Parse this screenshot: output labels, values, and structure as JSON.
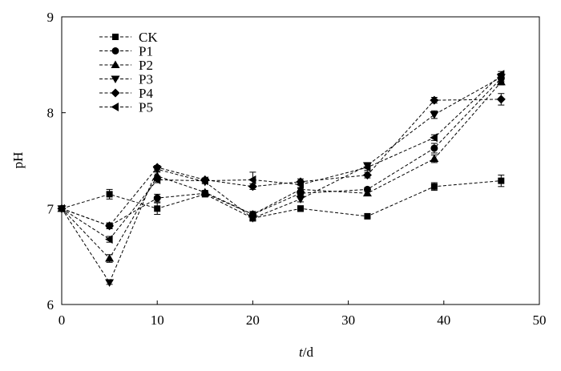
{
  "chart_data": {
    "type": "line",
    "title": "",
    "xlabel_italic": "t",
    "xlabel_rest": "/d",
    "ylabel": "pH",
    "xlim": [
      0,
      50
    ],
    "ylim": [
      6,
      9
    ],
    "xticks": [
      0,
      10,
      20,
      30,
      40,
      50
    ],
    "yticks": [
      6,
      7,
      8,
      9
    ],
    "grid": false,
    "legend_position": "top-left",
    "x": [
      0,
      5,
      10,
      15,
      20,
      25,
      32,
      39,
      46
    ],
    "series": [
      {
        "name": "CK",
        "marker": "square",
        "values": [
          7.0,
          7.15,
          7.0,
          7.15,
          6.9,
          7.0,
          6.92,
          7.23,
          7.29
        ],
        "errors": [
          0,
          0.05,
          0.06,
          0.02,
          0.03,
          0.03,
          0.01,
          0.04,
          0.06
        ]
      },
      {
        "name": "P1",
        "marker": "circle",
        "values": [
          7.0,
          6.82,
          7.11,
          7.16,
          6.94,
          7.16,
          7.2,
          7.63,
          8.36
        ],
        "errors": [
          0,
          0.03,
          0.04,
          0.02,
          0.03,
          0.03,
          0.02,
          0.05,
          0.04
        ]
      },
      {
        "name": "P2",
        "marker": "triangle-up",
        "values": [
          7.0,
          6.48,
          7.34,
          7.17,
          6.94,
          7.2,
          7.16,
          7.52,
          8.32
        ],
        "errors": [
          0,
          0.04,
          0.05,
          0.02,
          0.03,
          0.02,
          0.02,
          0.04,
          0.03
        ]
      },
      {
        "name": "P3",
        "marker": "triangle-down",
        "values": [
          7.0,
          6.23,
          7.41,
          7.28,
          6.9,
          7.1,
          7.45,
          7.98,
          8.37
        ],
        "errors": [
          0,
          0.02,
          0.03,
          0.02,
          0.02,
          0.03,
          0.03,
          0.04,
          0.04
        ]
      },
      {
        "name": "P4",
        "marker": "diamond",
        "values": [
          7.0,
          6.82,
          7.43,
          7.3,
          7.23,
          7.28,
          7.35,
          8.13,
          8.14
        ],
        "errors": [
          0,
          0.03,
          0.02,
          0.02,
          0.03,
          0.03,
          0.03,
          0.03,
          0.06
        ]
      },
      {
        "name": "P5",
        "marker": "triangle-left",
        "values": [
          7.0,
          6.68,
          7.3,
          7.29,
          7.3,
          7.25,
          7.43,
          7.74,
          8.4
        ],
        "errors": [
          0,
          0.03,
          0.03,
          0.02,
          0.08,
          0.04,
          0.03,
          0.03,
          0.03
        ]
      }
    ]
  }
}
